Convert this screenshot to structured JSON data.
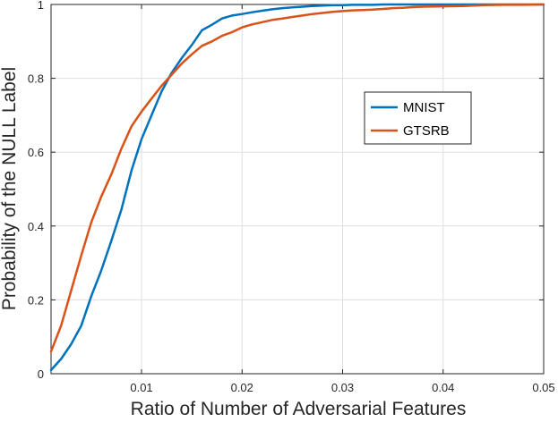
{
  "chart_data": {
    "type": "line",
    "title": "",
    "xlabel": "Ratio of Number of Adversarial Features",
    "ylabel": "Probability of the NULL Label",
    "xlim": [
      0.001,
      0.05
    ],
    "ylim": [
      0,
      1
    ],
    "grid": true,
    "legend_position": "center-right",
    "x_ticks": [
      0.01,
      0.02,
      0.03,
      0.04,
      0.05
    ],
    "x_tick_labels": [
      "0.01",
      "0.02",
      "0.03",
      "0.04",
      "0.05"
    ],
    "y_ticks": [
      0,
      0.2,
      0.4,
      0.6,
      0.8,
      1
    ],
    "y_tick_labels": [
      "0",
      "0.2",
      "0.4",
      "0.6",
      "0.8",
      "1"
    ],
    "series": [
      {
        "name": "MNIST",
        "color": "#0072BD",
        "x": [
          0.001,
          0.002,
          0.003,
          0.004,
          0.005,
          0.006,
          0.007,
          0.008,
          0.009,
          0.01,
          0.011,
          0.012,
          0.013,
          0.014,
          0.015,
          0.016,
          0.017,
          0.018,
          0.019,
          0.02,
          0.021,
          0.022,
          0.023,
          0.024,
          0.025,
          0.026,
          0.027,
          0.028,
          0.029,
          0.03,
          0.031,
          0.032,
          0.033,
          0.034,
          0.035,
          0.036,
          0.038,
          0.04,
          0.042,
          0.044,
          0.046,
          0.048,
          0.05
        ],
        "y": [
          0.01,
          0.04,
          0.08,
          0.13,
          0.21,
          0.28,
          0.36,
          0.445,
          0.55,
          0.635,
          0.7,
          0.765,
          0.815,
          0.855,
          0.89,
          0.93,
          0.945,
          0.962,
          0.97,
          0.974,
          0.979,
          0.983,
          0.987,
          0.99,
          0.992,
          0.994,
          0.996,
          0.997,
          0.998,
          0.998,
          0.999,
          0.999,
          0.999,
          1.0,
          1.0,
          1.0,
          1.0,
          1.0,
          1.0,
          1.0,
          1.0,
          1.0,
          1.0
        ]
      },
      {
        "name": "GTSRB",
        "color": "#D95319",
        "x": [
          0.001,
          0.002,
          0.003,
          0.004,
          0.005,
          0.006,
          0.007,
          0.008,
          0.009,
          0.01,
          0.011,
          0.012,
          0.013,
          0.014,
          0.015,
          0.016,
          0.017,
          0.018,
          0.019,
          0.02,
          0.021,
          0.022,
          0.023,
          0.024,
          0.025,
          0.026,
          0.027,
          0.028,
          0.029,
          0.03,
          0.031,
          0.032,
          0.033,
          0.034,
          0.035,
          0.036,
          0.037,
          0.038,
          0.04,
          0.042,
          0.044,
          0.046,
          0.048,
          0.05
        ],
        "y": [
          0.06,
          0.13,
          0.225,
          0.32,
          0.41,
          0.48,
          0.54,
          0.61,
          0.67,
          0.71,
          0.745,
          0.78,
          0.81,
          0.84,
          0.865,
          0.888,
          0.9,
          0.915,
          0.925,
          0.938,
          0.946,
          0.952,
          0.958,
          0.962,
          0.966,
          0.97,
          0.974,
          0.977,
          0.98,
          0.982,
          0.984,
          0.985,
          0.986,
          0.988,
          0.99,
          0.991,
          0.993,
          0.994,
          0.995,
          0.996,
          0.998,
          0.999,
          0.999,
          1.0
        ]
      }
    ]
  }
}
